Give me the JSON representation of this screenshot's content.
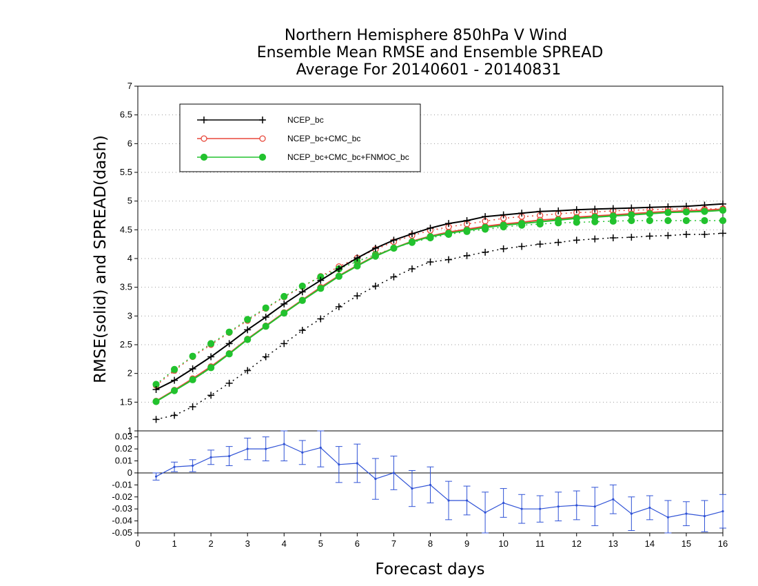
{
  "chart_data": [
    {
      "type": "line",
      "title": [
        "Northern Hemisphere 850hPa V Wind",
        "Ensemble Mean RMSE and Ensemble SPREAD",
        "Average For 20140601 - 20140831"
      ],
      "ylabel": "RMSE(solid) and SPREAD(dash)",
      "ylim": [
        1,
        7
      ],
      "xlim": [
        0,
        16
      ],
      "yticks": [
        "1",
        "1.5",
        "2",
        "2.5",
        "3",
        "3.5",
        "4",
        "4.5",
        "5",
        "5.5",
        "6",
        "6.5",
        "7"
      ],
      "grid": "horizontal dotted",
      "legend_position": "top-left",
      "x": [
        0.5,
        1,
        1.5,
        2,
        2.5,
        3,
        3.5,
        4,
        4.5,
        5,
        5.5,
        6,
        6.5,
        7,
        7.5,
        8,
        8.5,
        9,
        9.5,
        10,
        10.5,
        11,
        11.5,
        12,
        12.5,
        13,
        13.5,
        14,
        14.5,
        15,
        15.5,
        16
      ],
      "series": [
        {
          "name": "NCEP_bc",
          "color": "#000000",
          "marker": "plus",
          "kind": "RMSE",
          "values": [
            1.72,
            1.88,
            2.08,
            2.29,
            2.52,
            2.76,
            2.98,
            3.21,
            3.42,
            3.62,
            3.82,
            4.01,
            4.18,
            4.32,
            4.43,
            4.53,
            4.61,
            4.66,
            4.73,
            4.76,
            4.79,
            4.82,
            4.83,
            4.85,
            4.86,
            4.87,
            4.88,
            4.89,
            4.9,
            4.91,
            4.93,
            4.95
          ]
        },
        {
          "name": "NCEP_bc",
          "color": "#000000",
          "marker": "plus",
          "kind": "SPREAD",
          "values": [
            1.2,
            1.27,
            1.42,
            1.62,
            1.83,
            2.05,
            2.29,
            2.52,
            2.75,
            2.95,
            3.16,
            3.35,
            3.52,
            3.68,
            3.82,
            3.94,
            3.98,
            4.05,
            4.11,
            4.17,
            4.21,
            4.25,
            4.28,
            4.32,
            4.34,
            4.36,
            4.37,
            4.39,
            4.4,
            4.42,
            4.42,
            4.44
          ]
        },
        {
          "name": "NCEP_bc+CMC_bc",
          "color": "#e8473a",
          "marker": "open-circle",
          "kind": "RMSE",
          "values": [
            1.52,
            1.71,
            1.91,
            2.12,
            2.35,
            2.6,
            2.83,
            3.06,
            3.28,
            3.5,
            3.7,
            3.88,
            4.05,
            4.18,
            4.3,
            4.39,
            4.46,
            4.51,
            4.56,
            4.6,
            4.63,
            4.67,
            4.69,
            4.72,
            4.74,
            4.76,
            4.78,
            4.8,
            4.82,
            4.83,
            4.84,
            4.86
          ]
        },
        {
          "name": "NCEP_bc+CMC_bc",
          "color": "#e8473a",
          "marker": "open-circle",
          "kind": "SPREAD",
          "values": [
            1.79,
            2.05,
            2.29,
            2.5,
            2.71,
            2.92,
            3.13,
            3.33,
            3.51,
            3.69,
            3.86,
            4.01,
            4.16,
            4.29,
            4.4,
            4.49,
            4.55,
            4.6,
            4.65,
            4.7,
            4.73,
            4.75,
            4.78,
            4.8,
            4.81,
            4.83,
            4.84,
            4.85,
            4.86,
            4.86,
            4.86,
            4.87
          ]
        },
        {
          "name": "NCEP_bc+CMC_bc+FNMOC_bc",
          "color": "#22c22e",
          "marker": "filled-circle",
          "kind": "RMSE",
          "values": [
            1.51,
            1.7,
            1.89,
            2.1,
            2.34,
            2.59,
            2.82,
            3.05,
            3.27,
            3.48,
            3.69,
            3.87,
            4.04,
            4.18,
            4.29,
            4.38,
            4.44,
            4.49,
            4.54,
            4.58,
            4.61,
            4.64,
            4.67,
            4.7,
            4.72,
            4.74,
            4.76,
            4.78,
            4.8,
            4.81,
            4.82,
            4.84
          ]
        },
        {
          "name": "NCEP_bc+CMC_bc+FNMOC_bc",
          "color": "#22c22e",
          "marker": "filled-circle",
          "kind": "SPREAD",
          "values": [
            1.81,
            2.07,
            2.3,
            2.52,
            2.72,
            2.94,
            3.14,
            3.34,
            3.52,
            3.68,
            3.82,
            3.95,
            4.07,
            4.18,
            4.28,
            4.36,
            4.42,
            4.47,
            4.51,
            4.55,
            4.58,
            4.6,
            4.62,
            4.63,
            4.64,
            4.65,
            4.66,
            4.66,
            4.66,
            4.66,
            4.66,
            4.66
          ]
        }
      ]
    },
    {
      "type": "line",
      "xlabel": "Forecast days",
      "xticks": [
        "0",
        "1",
        "2",
        "3",
        "4",
        "5",
        "6",
        "7",
        "8",
        "9",
        "10",
        "11",
        "12",
        "13",
        "14",
        "15",
        "16"
      ],
      "ylim": [
        -0.05,
        0.035
      ],
      "yticks": [
        "0.03",
        "0.02",
        "0.01",
        "0",
        "-0.01",
        "-0.02",
        "-0.03",
        "-0.04",
        "-0.05"
      ],
      "zero_line": true,
      "x": [
        0.5,
        1,
        1.5,
        2,
        2.5,
        3,
        3.5,
        4,
        4.5,
        5,
        5.5,
        6,
        6.5,
        7,
        7.5,
        8,
        8.5,
        9,
        9.5,
        10,
        10.5,
        11,
        11.5,
        12,
        12.5,
        13,
        13.5,
        14,
        14.5,
        15,
        15.5,
        16
      ],
      "series": [
        {
          "color": "#2f52d6",
          "values": [
            -0.003,
            0.005,
            0.006,
            0.013,
            0.014,
            0.02,
            0.02,
            0.024,
            0.017,
            0.021,
            0.007,
            0.008,
            -0.005,
            0.0,
            -0.013,
            -0.01,
            -0.023,
            -0.023,
            -0.033,
            -0.025,
            -0.03,
            -0.03,
            -0.028,
            -0.027,
            -0.028,
            -0.022,
            -0.034,
            -0.029,
            -0.037,
            -0.034,
            -0.036,
            -0.032
          ],
          "error": [
            0.003,
            0.004,
            0.005,
            0.006,
            0.008,
            0.009,
            0.01,
            0.014,
            0.01,
            0.016,
            0.015,
            0.016,
            0.017,
            0.014,
            0.015,
            0.015,
            0.016,
            0.012,
            0.017,
            0.012,
            0.012,
            0.011,
            0.012,
            0.012,
            0.016,
            0.012,
            0.014,
            0.01,
            0.014,
            0.01,
            0.013,
            0.014
          ]
        }
      ]
    }
  ],
  "legend": {
    "items": [
      {
        "label": "NCEP_bc",
        "color": "#000000",
        "marker": "plus"
      },
      {
        "label": "NCEP_bc+CMC_bc",
        "color": "#e8473a",
        "marker": "open-circle"
      },
      {
        "label": "NCEP_bc+CMC_bc+FNMOC_bc",
        "color": "#22c22e",
        "marker": "filled-circle"
      }
    ]
  }
}
